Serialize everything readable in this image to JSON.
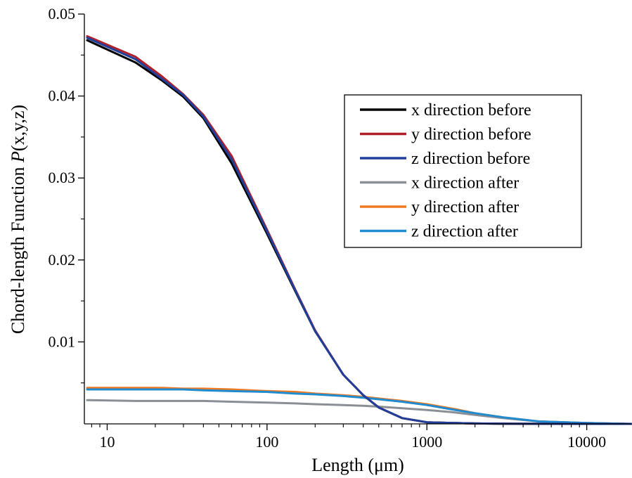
{
  "chart_data": {
    "type": "line",
    "xlabel": "Length (μm)",
    "ylabel_prefix": "Chord-length Function ",
    "ylabel_italic": "P",
    "ylabel_suffix": "(x,y,z)",
    "x_scale": "log",
    "xlim": [
      7.2,
      19000
    ],
    "ylim": [
      0,
      0.05
    ],
    "x_ticks": [
      10,
      100,
      1000,
      10000
    ],
    "x_tick_labels": [
      "10",
      "100",
      "1000",
      "10000"
    ],
    "y_ticks": [
      0.01,
      0.02,
      0.03,
      0.04,
      0.05
    ],
    "y_tick_labels": [
      "0.01",
      "0.02",
      "0.03",
      "0.04",
      "0.05"
    ],
    "grid": false,
    "legend_position": "top-right",
    "x": [
      7.5,
      15,
      22,
      30,
      40,
      60,
      100,
      150,
      200,
      300,
      400,
      500,
      700,
      1000,
      1500,
      2000,
      3000,
      5000,
      10000,
      19000
    ],
    "series": [
      {
        "name": "x direction before",
        "color": "#000000",
        "values": [
          0.0468,
          0.0441,
          0.0419,
          0.0399,
          0.0373,
          0.0318,
          0.0232,
          0.0162,
          0.0113,
          0.006,
          0.0035,
          0.002,
          0.0007,
          0.0002,
          0.0001,
          5e-05,
          2e-05,
          1e-05,
          0.0,
          0.0
        ]
      },
      {
        "name": "y direction before",
        "color": "#b0202a",
        "values": [
          0.0473,
          0.0448,
          0.0424,
          0.0402,
          0.0377,
          0.0327,
          0.0237,
          0.0164,
          0.0114,
          0.006,
          0.0035,
          0.002,
          0.0007,
          0.0002,
          0.0001,
          5e-05,
          2e-05,
          1e-05,
          0.0,
          0.0
        ]
      },
      {
        "name": "z direction before",
        "color": "#1f3f9a",
        "values": [
          0.0471,
          0.0445,
          0.0421,
          0.0401,
          0.0375,
          0.0323,
          0.0235,
          0.0163,
          0.0113,
          0.006,
          0.0035,
          0.002,
          0.0007,
          0.0002,
          0.0001,
          5e-05,
          2e-05,
          1e-05,
          0.0,
          0.0
        ]
      },
      {
        "name": "x direction after",
        "color": "#8a8f96",
        "values": [
          0.0029,
          0.0028,
          0.0028,
          0.0028,
          0.0028,
          0.0027,
          0.0026,
          0.0025,
          0.0024,
          0.0023,
          0.0022,
          0.0021,
          0.0019,
          0.0017,
          0.0014,
          0.0011,
          0.0007,
          0.0003,
          0.0001,
          0.0
        ]
      },
      {
        "name": "y direction after",
        "color": "#ee7a22",
        "values": [
          0.0044,
          0.0044,
          0.0044,
          0.0043,
          0.0043,
          0.0042,
          0.004,
          0.0039,
          0.0037,
          0.0035,
          0.0033,
          0.0031,
          0.0028,
          0.0024,
          0.0018,
          0.0013,
          0.0008,
          0.0003,
          0.0001,
          0.0
        ]
      },
      {
        "name": "z direction after",
        "color": "#1f8bd0",
        "values": [
          0.0042,
          0.0042,
          0.0042,
          0.0042,
          0.0041,
          0.004,
          0.0039,
          0.0037,
          0.0036,
          0.0034,
          0.0032,
          0.003,
          0.0027,
          0.0023,
          0.0017,
          0.0013,
          0.0008,
          0.0003,
          0.0001,
          0.0
        ]
      }
    ]
  }
}
